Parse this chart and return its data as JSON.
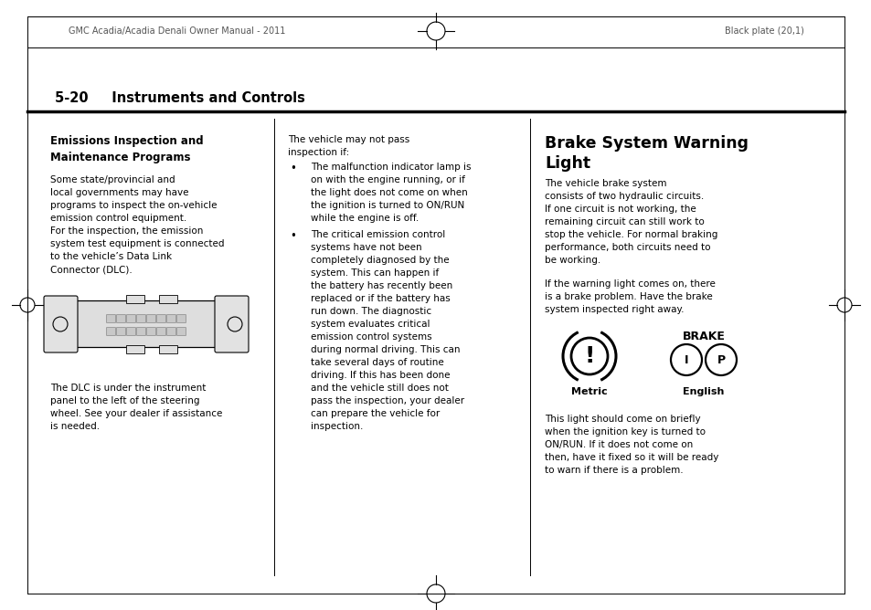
{
  "bg_color": "#ffffff",
  "text_color": "#000000",
  "line_color": "#000000",
  "gray_color": "#cccccc",
  "header_left": "GMC Acadia/Acadia Denali Owner Manual - 2011",
  "header_right": "Black plate (20,1)",
  "section_title": "5-20     Instruments and Controls",
  "col1_heading": "Emissions Inspection and\nMaintenance Programs",
  "col1_body": "Some state/provincial and\nlocal governments may have\nprograms to inspect the on-vehicle\nemission control equipment.\nFor the inspection, the emission\nsystem test equipment is connected\nto the vehicle’s Data Link\nConnector (DLC).",
  "col1_caption": "The DLC is under the instrument\npanel to the left of the steering\nwheel. See your dealer if assistance\nis needed.",
  "col2_intro": "The vehicle may not pass\ninspection if:",
  "col2_bullet1": "The malfunction indicator lamp is\non with the engine running, or if\nthe light does not come on when\nthe ignition is turned to ON/RUN\nwhile the engine is off.",
  "col2_bullet2": "The critical emission control\nsystems have not been\ncompletely diagnosed by the\nsystem. This can happen if\nthe battery has recently been\nreplaced or if the battery has\nrun down. The diagnostic\nsystem evaluates critical\nemission control systems\nduring normal driving. This can\ntake several days of routine\ndriving. If this has been done\nand the vehicle still does not\npass the inspection, your dealer\ncan prepare the vehicle for\ninspection.",
  "col3_heading": "Brake System Warning\nLight",
  "col3_body1": "The vehicle brake system\nconsists of two hydraulic circuits.\nIf one circuit is not working, the\nremaining circuit can still work to\nstop the vehicle. For normal braking\nperformance, both circuits need to\nbe working.",
  "col3_body2": "If the warning light comes on, there\nis a brake problem. Have the brake\nsystem inspected right away.",
  "col3_metric_label": "Metric",
  "col3_english_label": "English",
  "col3_brake_label": "BRAKE",
  "col3_body3": "This light should come on briefly\nwhen the ignition key is turned to\nON/RUN. If it does not come on\nthen, have it fixed so it will be ready\nto warn if there is a problem.",
  "fs_header": 7.0,
  "fs_section": 10.5,
  "fs_body": 7.5,
  "fs_heading": 8.5,
  "fs_col3_heading": 12.5
}
